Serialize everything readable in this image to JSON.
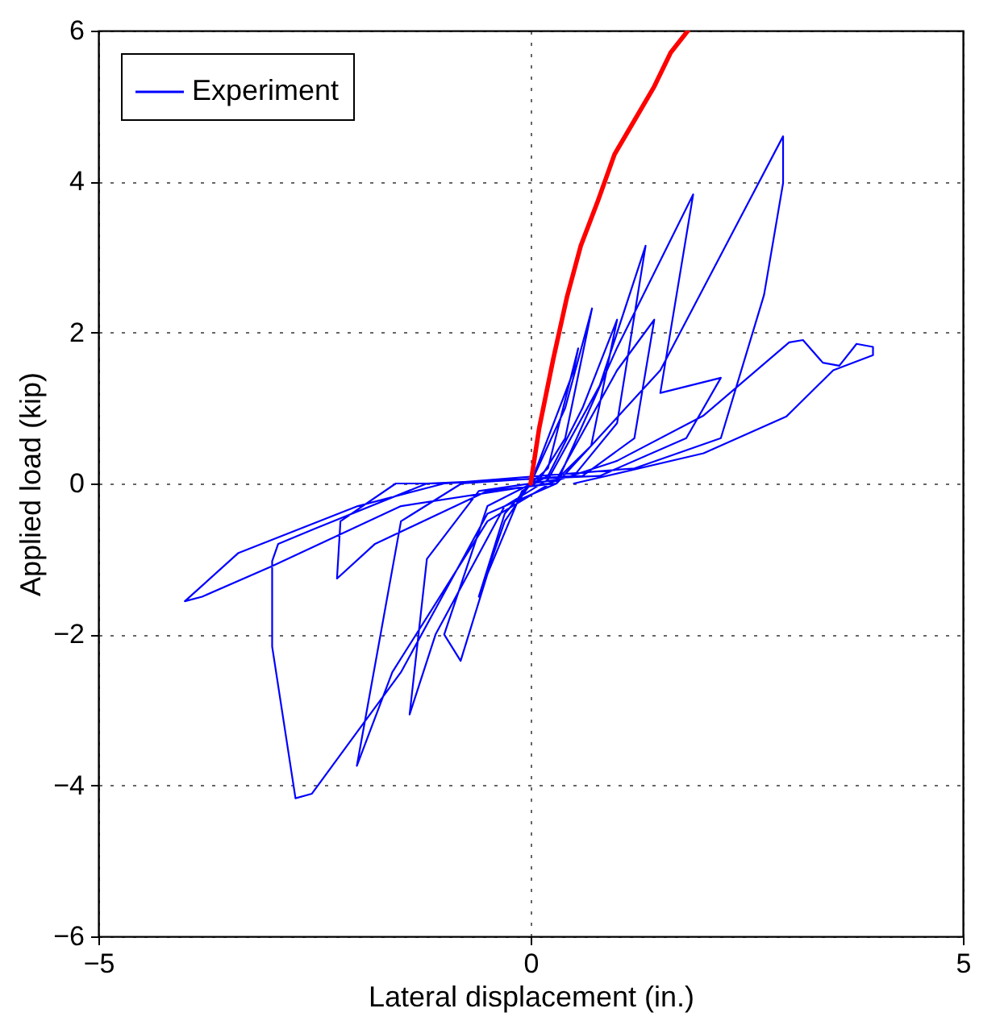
{
  "chart_data": {
    "type": "line",
    "xlabel": "Lateral displacement (in.)",
    "ylabel": "Applied load (kip)",
    "xlim": [
      -5,
      5
    ],
    "ylim": [
      -6,
      6
    ],
    "xticks": [
      -5,
      0,
      5
    ],
    "yticks": [
      -6,
      -4,
      -2,
      0,
      2,
      4,
      6
    ],
    "grid": true,
    "legend": "top left",
    "line_style": "solid",
    "marker": "none",
    "series": [
      {
        "name": "Experiment",
        "color": "#0000ff",
        "x": [
          0,
          0.3,
          0.5,
          0.55,
          0.2,
          0,
          -0.3,
          -0.6,
          -0.3,
          0,
          0.4,
          0.71,
          0.4,
          0.1,
          -0.5,
          -1.0,
          -0.81,
          -0.5,
          -0.1,
          0.2,
          0.6,
          1.0,
          0.7,
          0.3,
          -0.6,
          -1.2,
          -1.4,
          -1.1,
          -0.3,
          0.2,
          0.8,
          1.33,
          1.0,
          0.5,
          -0.8,
          -1.5,
          -2.01,
          -1.6,
          -0.5,
          0.3,
          1.0,
          1.43,
          1.2,
          0.6,
          -1.0,
          -1.56,
          -2.2,
          -2.24,
          -1.8,
          -0.5,
          0.3,
          1.0,
          1.88,
          1.5,
          2.2,
          1.8,
          0.8,
          -1.2,
          -2.5,
          -2.92,
          -2.99,
          -2.99,
          -2.72,
          -2.53,
          -1.5,
          -0.5,
          0.3,
          1.5,
          2.92,
          2.92,
          2.7,
          2.2,
          1.2,
          -1.0,
          -2.0,
          -3.38,
          -4.0,
          -3.8,
          -3.0,
          -1.5,
          0.2,
          1.0,
          2.0,
          2.99,
          3.15,
          3.38,
          3.57,
          3.77,
          3.96,
          3.96,
          3.5,
          2.96,
          2.0,
          0.5
        ],
        "values": [
          0,
          0.9,
          1.5,
          1.79,
          0.2,
          0,
          -0.5,
          -1.5,
          -0.4,
          0,
          1.0,
          2.32,
          0.6,
          0.05,
          -0.3,
          -2.0,
          -2.35,
          -1.2,
          -0.1,
          0.1,
          1.0,
          2.17,
          0.5,
          0.05,
          -0.1,
          -1.0,
          -3.06,
          -2.0,
          -0.3,
          0.05,
          1.3,
          3.15,
          0.8,
          0.1,
          0,
          -0.5,
          -3.74,
          -2.5,
          -0.5,
          0.05,
          1.5,
          2.17,
          0.6,
          0.1,
          0,
          0,
          -0.5,
          -1.26,
          -0.8,
          -0.1,
          0,
          1.8,
          3.83,
          1.2,
          1.4,
          0.6,
          0.1,
          0,
          -0.6,
          -0.8,
          -1.03,
          -2.16,
          -4.17,
          -4.11,
          -2.5,
          -0.4,
          0,
          1.5,
          4.6,
          3.98,
          2.5,
          0.6,
          0.2,
          0,
          -0.3,
          -0.92,
          -1.56,
          -1.5,
          -1.1,
          -0.3,
          0,
          0.3,
          0.9,
          1.87,
          1.9,
          1.6,
          1.56,
          1.85,
          1.81,
          1.7,
          1.5,
          0.89,
          0.4,
          0
        ]
      },
      {
        "color": "#ff0000",
        "x": [
          0,
          0.1,
          0.26,
          0.42,
          0.58,
          0.78,
          0.97,
          1.2,
          1.43,
          1.62,
          1.82
        ],
        "values": [
          0,
          0.74,
          1.64,
          2.47,
          3.15,
          3.75,
          4.36,
          4.81,
          5.26,
          5.71,
          6.0
        ]
      }
    ]
  }
}
